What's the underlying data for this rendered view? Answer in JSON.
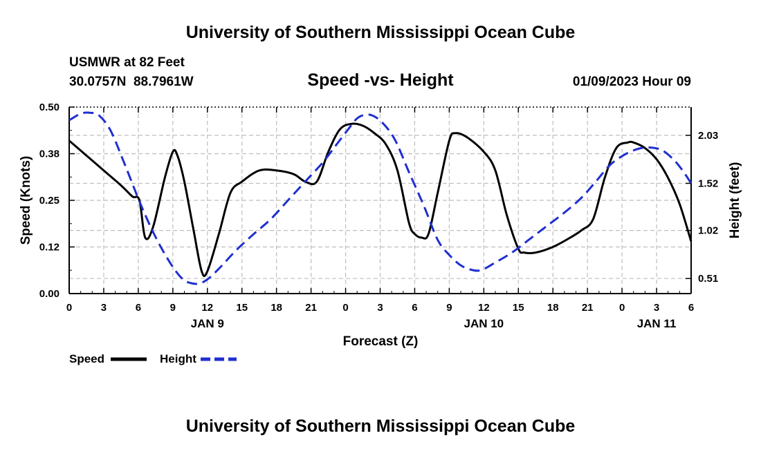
{
  "header": {
    "title": "University of Southern Mississippi Ocean Cube",
    "station": "USMWR at 82 Feet",
    "coords": "30.0757N  88.7961W",
    "subtitle": "Speed -vs- Height",
    "datetime": "01/09/2023 Hour 09"
  },
  "footer": {
    "title": "University of Southern Mississippi Ocean Cube"
  },
  "chart_data": {
    "type": "line",
    "title": "Speed -vs- Height",
    "xlabel": "Forecast (Z)",
    "ylabel_left": "Speed (Knots)",
    "ylabel_right": "Height (feet)",
    "xlim": [
      0,
      54
    ],
    "ylim_left": [
      0,
      0.5
    ],
    "ylim_right": [
      0.35,
      2.33
    ],
    "grid": true,
    "x_ticks": [
      0,
      3,
      6,
      9,
      12,
      15,
      18,
      21,
      24,
      27,
      30,
      33,
      36,
      39,
      42,
      45,
      48,
      51,
      54
    ],
    "x_tick_labels": [
      "0",
      "3",
      "6",
      "9",
      "12",
      "15",
      "18",
      "21",
      "0",
      "3",
      "6",
      "9",
      "12",
      "15",
      "18",
      "21",
      "0",
      "3",
      "6"
    ],
    "day_labels": [
      {
        "x": 12,
        "label": "JAN 9"
      },
      {
        "x": 36,
        "label": "JAN 10"
      },
      {
        "x": 51,
        "label": "JAN 11"
      }
    ],
    "left_ticks": [
      0.0,
      0.125,
      0.25,
      0.375,
      0.5
    ],
    "left_tick_labels": [
      "0.00",
      "0.12",
      "0.25",
      "0.38",
      "0.50"
    ],
    "right_ticks": [
      0.51,
      1.02,
      1.52,
      2.03
    ],
    "right_tick_labels": [
      "0.51",
      "1.02",
      "1.52",
      "2.03"
    ],
    "legend_position": "bottom-left",
    "series": [
      {
        "name": "Speed",
        "axis": "left",
        "color": "#000000",
        "style": "solid",
        "points": [
          [
            0,
            0.41
          ],
          [
            1.5,
            0.37
          ],
          [
            3,
            0.33
          ],
          [
            4.5,
            0.29
          ],
          [
            5.5,
            0.26
          ],
          [
            6.1,
            0.25
          ],
          [
            6.6,
            0.15
          ],
          [
            7.3,
            0.18
          ],
          [
            8.3,
            0.31
          ],
          [
            9,
            0.38
          ],
          [
            9.4,
            0.37
          ],
          [
            10,
            0.3
          ],
          [
            10.8,
            0.17
          ],
          [
            11.5,
            0.06
          ],
          [
            12,
            0.06
          ],
          [
            13,
            0.16
          ],
          [
            14,
            0.27
          ],
          [
            15,
            0.3
          ],
          [
            16.5,
            0.33
          ],
          [
            18,
            0.33
          ],
          [
            19.5,
            0.32
          ],
          [
            20.5,
            0.3
          ],
          [
            21.5,
            0.3
          ],
          [
            22.5,
            0.38
          ],
          [
            23.5,
            0.44
          ],
          [
            24.5,
            0.455
          ],
          [
            25.5,
            0.45
          ],
          [
            26.5,
            0.43
          ],
          [
            27.5,
            0.4
          ],
          [
            28.5,
            0.33
          ],
          [
            29.5,
            0.19
          ],
          [
            30,
            0.16
          ],
          [
            30.6,
            0.15
          ],
          [
            31.2,
            0.16
          ],
          [
            32,
            0.27
          ],
          [
            33,
            0.41
          ],
          [
            33.5,
            0.43
          ],
          [
            34.5,
            0.42
          ],
          [
            36,
            0.38
          ],
          [
            37,
            0.33
          ],
          [
            38,
            0.21
          ],
          [
            39,
            0.12
          ],
          [
            39.5,
            0.11
          ],
          [
            40.5,
            0.11
          ],
          [
            42,
            0.125
          ],
          [
            43.5,
            0.15
          ],
          [
            44.5,
            0.17
          ],
          [
            45.5,
            0.2
          ],
          [
            46.5,
            0.31
          ],
          [
            47.5,
            0.39
          ],
          [
            48.5,
            0.405
          ],
          [
            49,
            0.405
          ],
          [
            50,
            0.39
          ],
          [
            51,
            0.36
          ],
          [
            52,
            0.31
          ],
          [
            53,
            0.24
          ],
          [
            54,
            0.14
          ]
        ]
      },
      {
        "name": "Height",
        "axis": "right",
        "color": "#1f2fd0",
        "style": "dashed",
        "points": [
          [
            0,
            2.19
          ],
          [
            1,
            2.26
          ],
          [
            1.8,
            2.27
          ],
          [
            2.6,
            2.24
          ],
          [
            3.6,
            2.08
          ],
          [
            4.8,
            1.73
          ],
          [
            6.2,
            1.3
          ],
          [
            7.5,
            0.95
          ],
          [
            8.8,
            0.67
          ],
          [
            9.8,
            0.51
          ],
          [
            10.6,
            0.46
          ],
          [
            11.4,
            0.46
          ],
          [
            12.2,
            0.52
          ],
          [
            13.2,
            0.64
          ],
          [
            14.5,
            0.81
          ],
          [
            16,
            0.98
          ],
          [
            17.5,
            1.14
          ],
          [
            19,
            1.34
          ],
          [
            20.5,
            1.54
          ],
          [
            22,
            1.74
          ],
          [
            23.2,
            1.93
          ],
          [
            24.2,
            2.09
          ],
          [
            25,
            2.21
          ],
          [
            25.8,
            2.25
          ],
          [
            26.5,
            2.23
          ],
          [
            27.3,
            2.15
          ],
          [
            28.3,
            1.98
          ],
          [
            29.5,
            1.64
          ],
          [
            30.8,
            1.28
          ],
          [
            32,
            0.92
          ],
          [
            33,
            0.76
          ],
          [
            34,
            0.65
          ],
          [
            35,
            0.6
          ],
          [
            35.8,
            0.6
          ],
          [
            37,
            0.68
          ],
          [
            38.5,
            0.79
          ],
          [
            40,
            0.93
          ],
          [
            41.5,
            1.07
          ],
          [
            43,
            1.21
          ],
          [
            44.5,
            1.37
          ],
          [
            45.8,
            1.55
          ],
          [
            47,
            1.72
          ],
          [
            48.3,
            1.83
          ],
          [
            49.5,
            1.89
          ],
          [
            50.5,
            1.9
          ],
          [
            51.5,
            1.87
          ],
          [
            52.5,
            1.77
          ],
          [
            53.3,
            1.65
          ],
          [
            54,
            1.52
          ]
        ]
      }
    ]
  }
}
